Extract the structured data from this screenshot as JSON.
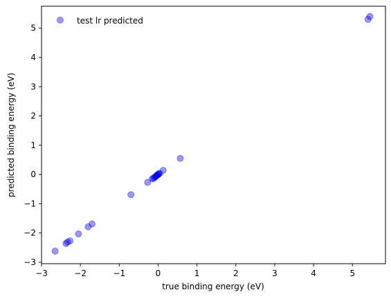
{
  "chart_data": {
    "type": "scatter",
    "xlabel": "true binding energy (eV)",
    "ylabel": "predicted binding energy (eV)",
    "xlim": [
      -3,
      5.85
    ],
    "ylim": [
      -3.05,
      5.75
    ],
    "xticks": [
      -3,
      -2,
      -1,
      0,
      1,
      2,
      3,
      4,
      5
    ],
    "yticks": [
      -3,
      -2,
      -1,
      0,
      1,
      2,
      3,
      4,
      5
    ],
    "grid": false,
    "legend_position": "top-left",
    "series": [
      {
        "name": "test lr predicted",
        "color": "#0000ff",
        "alpha": 0.4,
        "marker": "circle",
        "points": [
          {
            "x": -2.65,
            "y": -2.62
          },
          {
            "x": -2.37,
            "y": -2.36
          },
          {
            "x": -2.33,
            "y": -2.31
          },
          {
            "x": -2.27,
            "y": -2.27
          },
          {
            "x": -2.05,
            "y": -2.03
          },
          {
            "x": -1.8,
            "y": -1.79
          },
          {
            "x": -1.7,
            "y": -1.69
          },
          {
            "x": -0.7,
            "y": -0.69
          },
          {
            "x": -0.27,
            "y": -0.27
          },
          {
            "x": -0.15,
            "y": -0.15
          },
          {
            "x": -0.12,
            "y": -0.13
          },
          {
            "x": -0.09,
            "y": -0.1
          },
          {
            "x": -0.07,
            "y": -0.08
          },
          {
            "x": -0.05,
            "y": -0.05
          },
          {
            "x": -0.03,
            "y": -0.03
          },
          {
            "x": -0.01,
            "y": -0.01
          },
          {
            "x": 0.0,
            "y": 0.0
          },
          {
            "x": 0.02,
            "y": 0.02
          },
          {
            "x": 0.04,
            "y": 0.04
          },
          {
            "x": 0.13,
            "y": 0.14
          },
          {
            "x": 0.57,
            "y": 0.55
          },
          {
            "x": 5.4,
            "y": 5.3
          },
          {
            "x": 5.45,
            "y": 5.4
          }
        ]
      }
    ]
  }
}
